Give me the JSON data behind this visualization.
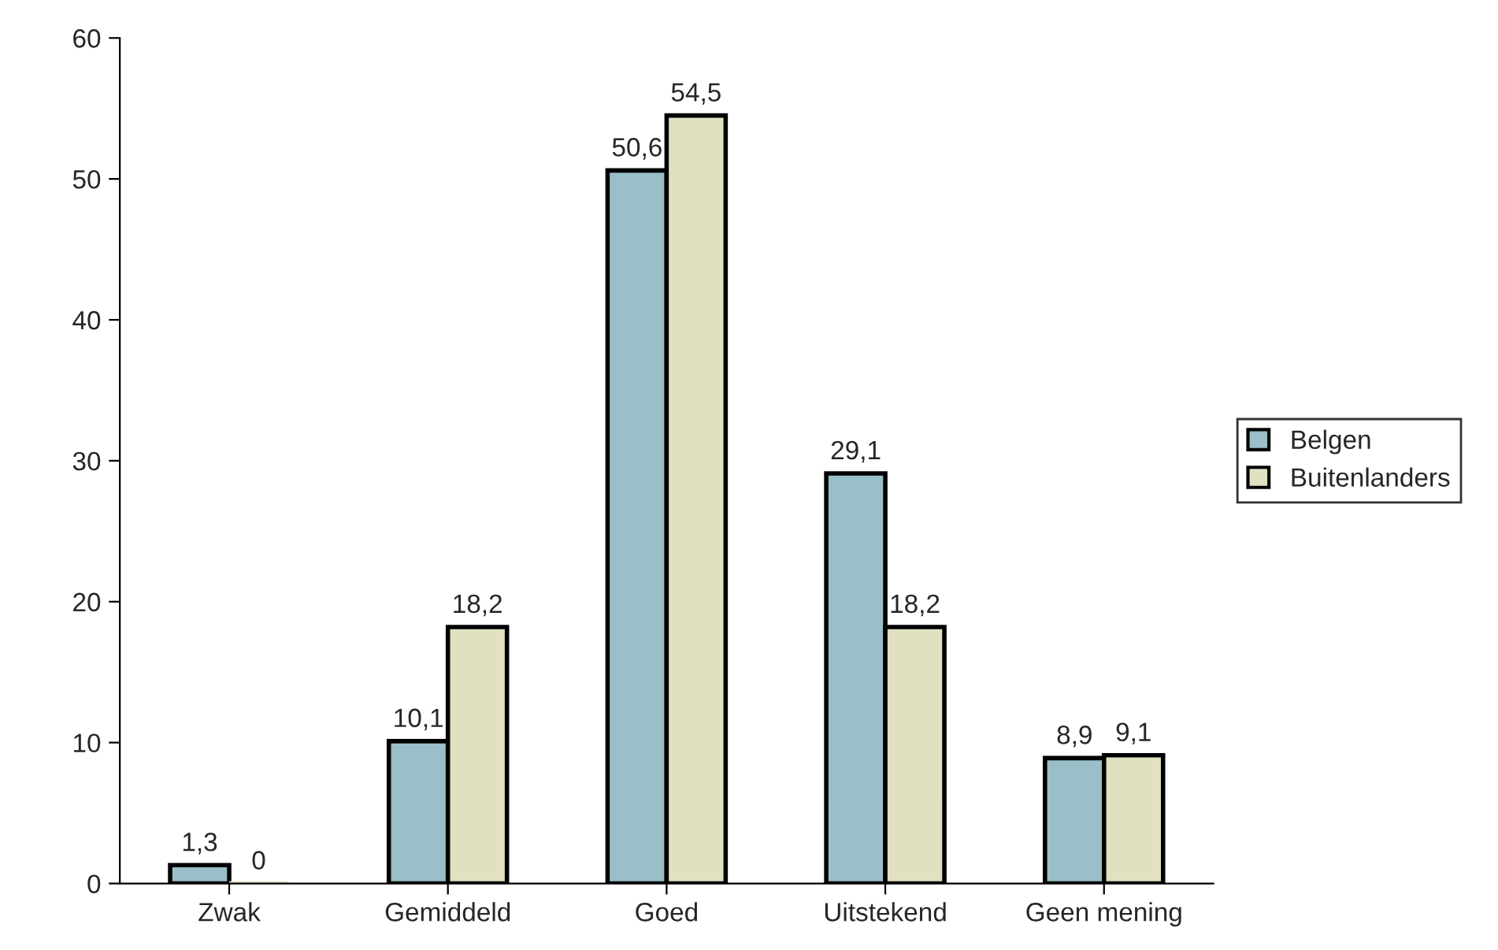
{
  "chart_data": {
    "type": "bar",
    "categories": [
      "Zwak",
      "Gemiddeld",
      "Goed",
      "Uitstekend",
      "Geen mening"
    ],
    "series": [
      {
        "name": "Belgen",
        "color": "#99bfc8",
        "values": [
          1.3,
          10.1,
          50.6,
          29.1,
          8.9
        ],
        "value_labels": [
          "1,3",
          "10,1",
          "50,6",
          "29,1",
          "8,9"
        ]
      },
      {
        "name": "Buitenlanders",
        "color": "#e1e1c1",
        "values": [
          0,
          18.2,
          54.5,
          18.2,
          9.1
        ],
        "value_labels": [
          "0",
          "18,2",
          "54,5",
          "18,2",
          "9,1"
        ]
      }
    ],
    "ylim": [
      0,
      60
    ],
    "yticks": [
      0,
      10,
      20,
      30,
      40,
      50,
      60
    ],
    "grid": false,
    "legend": "right"
  }
}
